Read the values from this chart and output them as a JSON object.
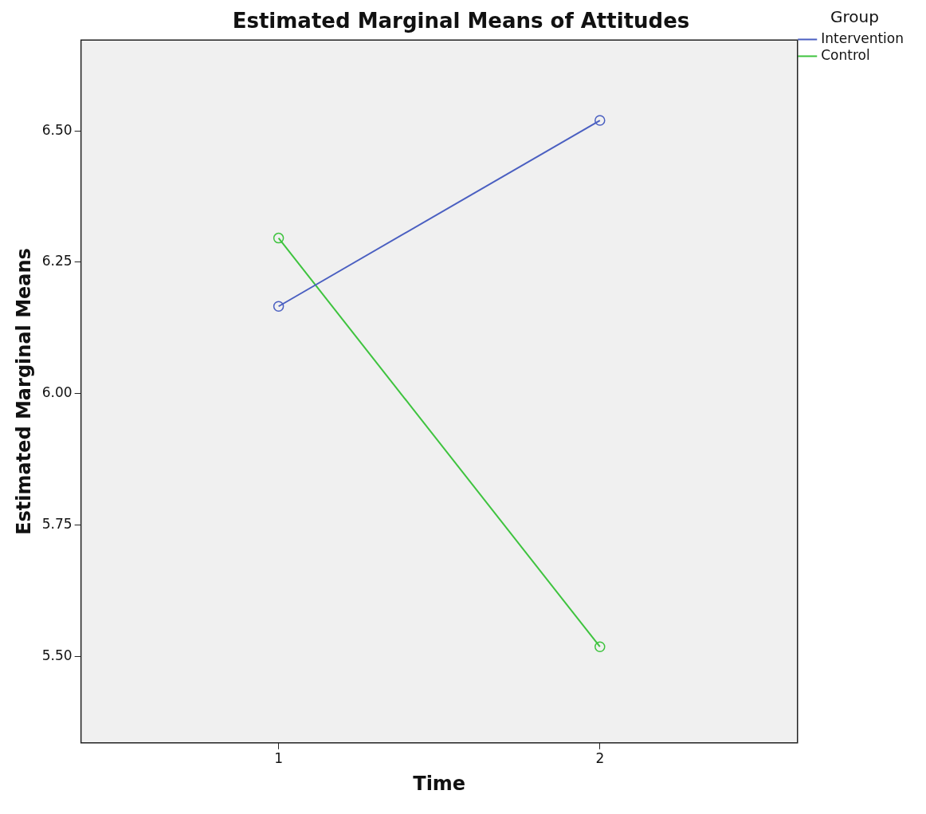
{
  "chart_data": {
    "type": "line",
    "title": "Estimated Marginal Means of Attitudes",
    "xlabel": "Time",
    "ylabel": "Estimated Marginal Means",
    "legend_title": "Group",
    "x": [
      1,
      2
    ],
    "series": [
      {
        "name": "Intervention",
        "color": "#4a5fc1",
        "values": [
          6.166,
          6.52
        ]
      },
      {
        "name": "Control",
        "color": "#3ec33e",
        "values": [
          6.296,
          5.518
        ]
      }
    ],
    "xlim": [
      0.385,
      2.615
    ],
    "xticks": [
      1,
      2
    ],
    "ylim": [
      5.335,
      6.673
    ],
    "yticks": [
      {
        "value": 5.5,
        "label": "5.50"
      },
      {
        "value": 5.75,
        "label": "5.75"
      },
      {
        "value": 6.0,
        "label": "6.00"
      },
      {
        "value": 6.25,
        "label": "6.25"
      },
      {
        "value": 6.5,
        "label": "6.50"
      }
    ],
    "grid": false,
    "legend": "top right",
    "marker": "circle",
    "line_style": "solid"
  }
}
